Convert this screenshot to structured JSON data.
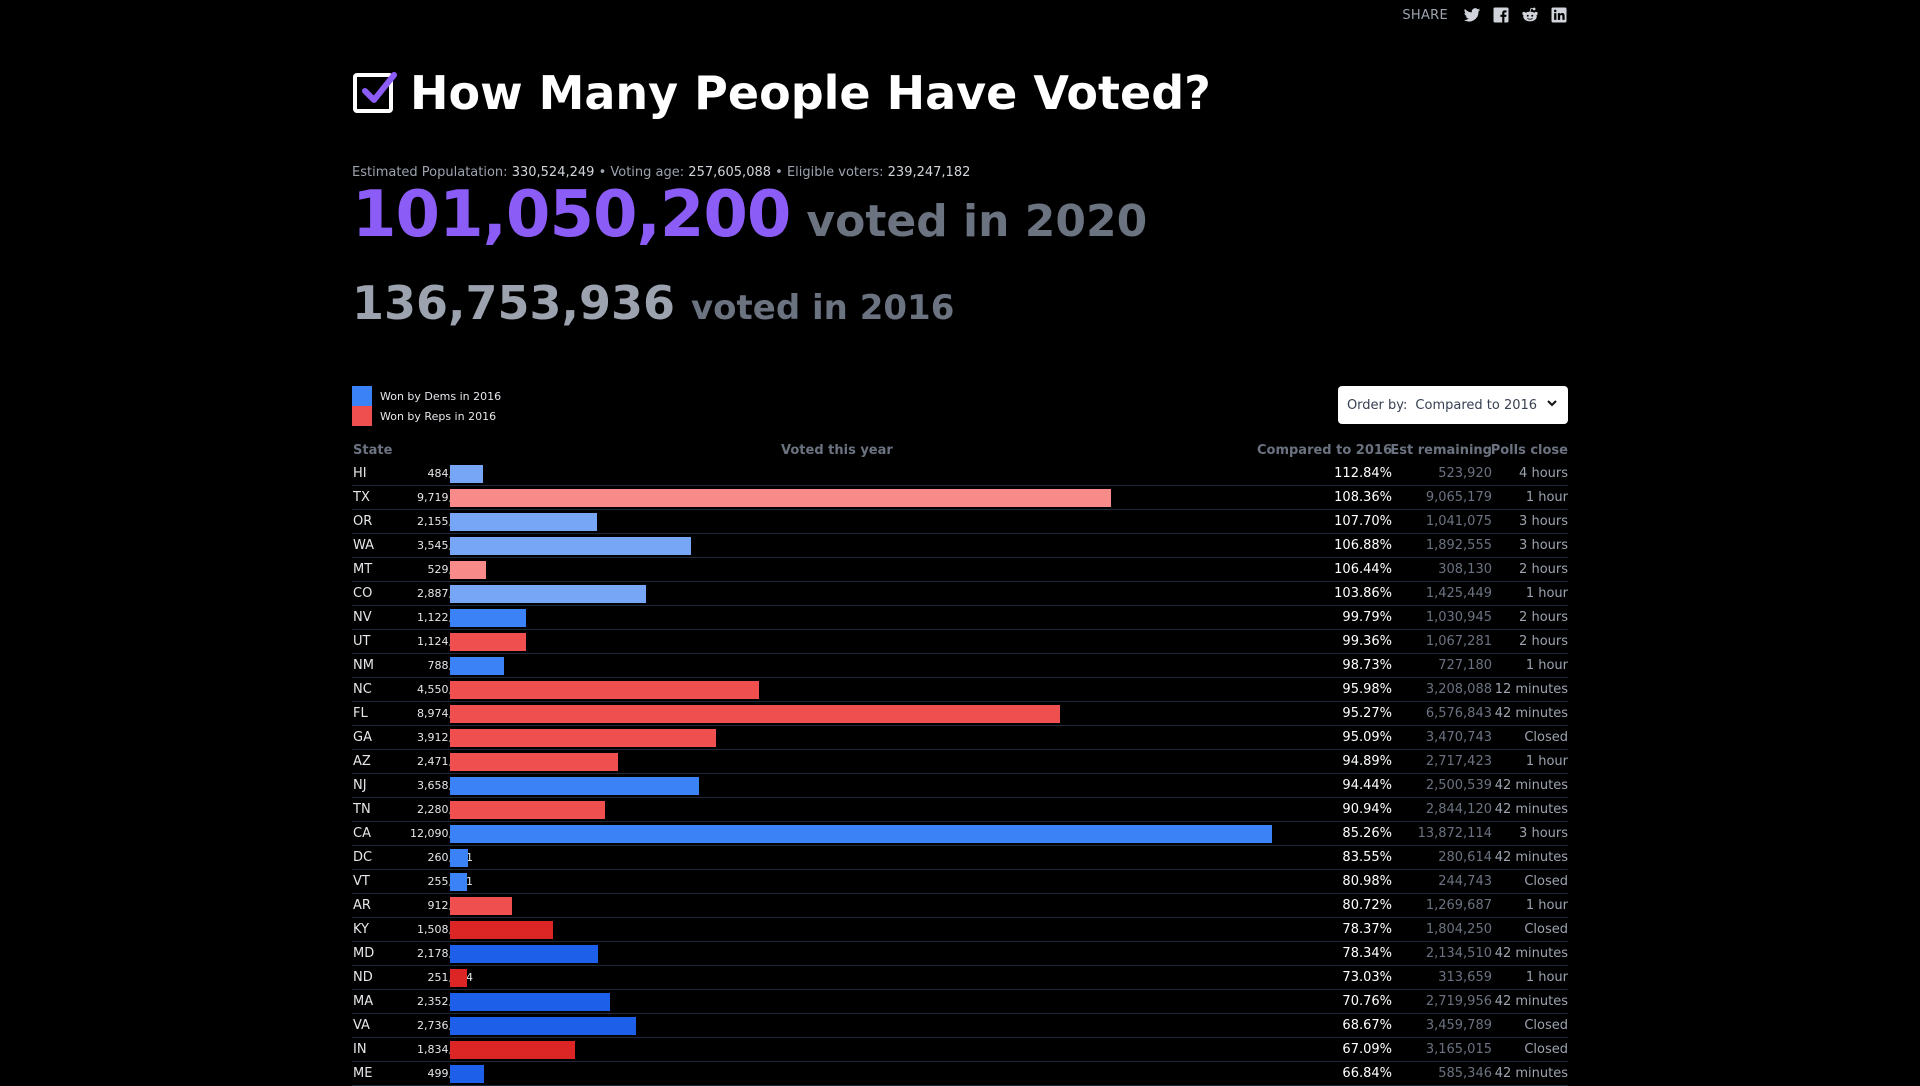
{
  "share": {
    "label": "SHARE",
    "icons": [
      "twitter-icon",
      "facebook-icon",
      "reddit-icon",
      "linkedin-icon"
    ]
  },
  "title": "How Many People Have Voted?",
  "population": {
    "est_label": "Estimated Populatation:",
    "est_value": "330,524,249",
    "age_label": "Voting age:",
    "age_value": "257,605,088",
    "elig_label": "Eligible voters:",
    "elig_value": "239,247,182",
    "sep": "•"
  },
  "voted2020": {
    "number": "101,050,200",
    "text": "voted in 2020"
  },
  "voted2016": {
    "number": "136,753,936",
    "text": "voted in 2016"
  },
  "legend": {
    "dems": "Won by Dems in 2016",
    "reps": "Won by Reps in 2016"
  },
  "order_by": {
    "label": "Order by:",
    "value": "Compared to 2016"
  },
  "table": {
    "headers": {
      "state": "State",
      "voted": "Voted this year",
      "compared": "Compared to 2016",
      "remaining": "Est remaining",
      "polls": "Polls close"
    },
    "colors": {
      "dem_light": "#77a6f7",
      "rep_light": "#f88a8a",
      "dem": "#3b82f6",
      "rep": "#ef4f4f",
      "dem_dark": "#1d5fe8",
      "rep_dark": "#dc2626"
    },
    "rows": [
      {
        "state": "HI",
        "votes": 484000,
        "voted": "484,000",
        "party": "dem_light",
        "compared": "112.84%",
        "remaining": "523,920",
        "polls": "4 hours"
      },
      {
        "state": "TX",
        "votes": 9719101,
        "voted": "9,719,101",
        "party": "rep_light",
        "compared": "108.36%",
        "remaining": "9,065,179",
        "polls": "1 hour"
      },
      {
        "state": "OR",
        "votes": 2155350,
        "voted": "2,155,350",
        "party": "dem_light",
        "compared": "107.70%",
        "remaining": "1,041,075",
        "polls": "3 hours"
      },
      {
        "state": "WA",
        "votes": 3545289,
        "voted": "3,545,289",
        "party": "dem_light",
        "compared": "106.88%",
        "remaining": "1,892,555",
        "polls": "3 hours"
      },
      {
        "state": "MT",
        "votes": 529168,
        "voted": "529,168",
        "party": "rep_light",
        "compared": "106.44%",
        "remaining": "308,130",
        "polls": "2 hours"
      },
      {
        "state": "CO",
        "votes": 2887605,
        "voted": "2,887,605",
        "party": "dem_light",
        "compared": "103.86%",
        "remaining": "1,425,449",
        "polls": "1 hour"
      },
      {
        "state": "NV",
        "votes": 1122970,
        "voted": "1,122,970",
        "party": "dem",
        "compared": "99.79%",
        "remaining": "1,030,945",
        "polls": "2 hours"
      },
      {
        "state": "UT",
        "votes": 1124206,
        "voted": "1,124,206",
        "party": "rep",
        "compared": "99.36%",
        "remaining": "1,067,281",
        "polls": "2 hours"
      },
      {
        "state": "NM",
        "votes": 788175,
        "voted": "788,175",
        "party": "dem",
        "compared": "98.73%",
        "remaining": "727,180",
        "polls": "1 hour"
      },
      {
        "state": "NC",
        "votes": 4550963,
        "voted": "4,550,963",
        "party": "rep",
        "compared": "95.98%",
        "remaining": "3,208,088",
        "polls": "12 minutes"
      },
      {
        "state": "FL",
        "votes": 8974896,
        "voted": "8,974,896",
        "party": "rep",
        "compared": "95.27%",
        "remaining": "6,576,843",
        "polls": "42 minutes"
      },
      {
        "state": "GA",
        "votes": 3912819,
        "voted": "3,912,819",
        "party": "rep",
        "compared": "95.09%",
        "remaining": "3,470,743",
        "polls": "Closed"
      },
      {
        "state": "AZ",
        "votes": 2471577,
        "voted": "2,471,577",
        "party": "rep",
        "compared": "94.89%",
        "remaining": "2,717,423",
        "polls": "1 hour"
      },
      {
        "state": "NJ",
        "votes": 3658460,
        "voted": "3,658,460",
        "party": "dem",
        "compared": "94.44%",
        "remaining": "2,500,539",
        "polls": "42 minutes"
      },
      {
        "state": "TN",
        "votes": 2280747,
        "voted": "2,280,747",
        "party": "rep",
        "compared": "90.94%",
        "remaining": "2,844,120",
        "polls": "42 minutes"
      },
      {
        "state": "CA",
        "votes": 12090534,
        "voted": "12,090,534",
        "party": "dem",
        "compared": "85.26%",
        "remaining": "13,872,114",
        "polls": "3 hours"
      },
      {
        "state": "DC",
        "votes": 260071,
        "voted": "260,071",
        "party": "dem",
        "compared": "83.55%",
        "remaining": "280,614",
        "polls": "42 minutes"
      },
      {
        "state": "VT",
        "votes": 255141,
        "voted": "255,141",
        "party": "dem",
        "compared": "80.98%",
        "remaining": "244,743",
        "polls": "Closed"
      },
      {
        "state": "AR",
        "votes": 912688,
        "voted": "912,688",
        "party": "rep",
        "compared": "80.72%",
        "remaining": "1,269,687",
        "polls": "1 hour"
      },
      {
        "state": "KY",
        "votes": 1508000,
        "voted": "1,508,000",
        "party": "rep_dark",
        "compared": "78.37%",
        "remaining": "1,804,250",
        "polls": "Closed"
      },
      {
        "state": "MD",
        "votes": 2178906,
        "voted": "2,178,906",
        "party": "dem_dark",
        "compared": "78.34%",
        "remaining": "2,134,510",
        "polls": "42 minutes"
      },
      {
        "state": "ND",
        "votes": 251484,
        "voted": "251,484",
        "party": "rep_dark",
        "compared": "73.03%",
        "remaining": "313,659",
        "polls": "1 hour"
      },
      {
        "state": "MA",
        "votes": 2352945,
        "voted": "2,352,945",
        "party": "dem_dark",
        "compared": "70.76%",
        "remaining": "2,719,956",
        "polls": "42 minutes"
      },
      {
        "state": "VA",
        "votes": 2736282,
        "voted": "2,736,282",
        "party": "dem_dark",
        "compared": "68.67%",
        "remaining": "3,459,789",
        "polls": "Closed"
      },
      {
        "state": "IN",
        "votes": 1834992,
        "voted": "1,834,992",
        "party": "rep_dark",
        "compared": "67.09%",
        "remaining": "3,165,015",
        "polls": "Closed"
      },
      {
        "state": "ME",
        "votes": 499939,
        "voted": "499,939",
        "party": "dem_dark",
        "compared": "66.84%",
        "remaining": "585,346",
        "polls": "42 minutes"
      }
    ]
  }
}
